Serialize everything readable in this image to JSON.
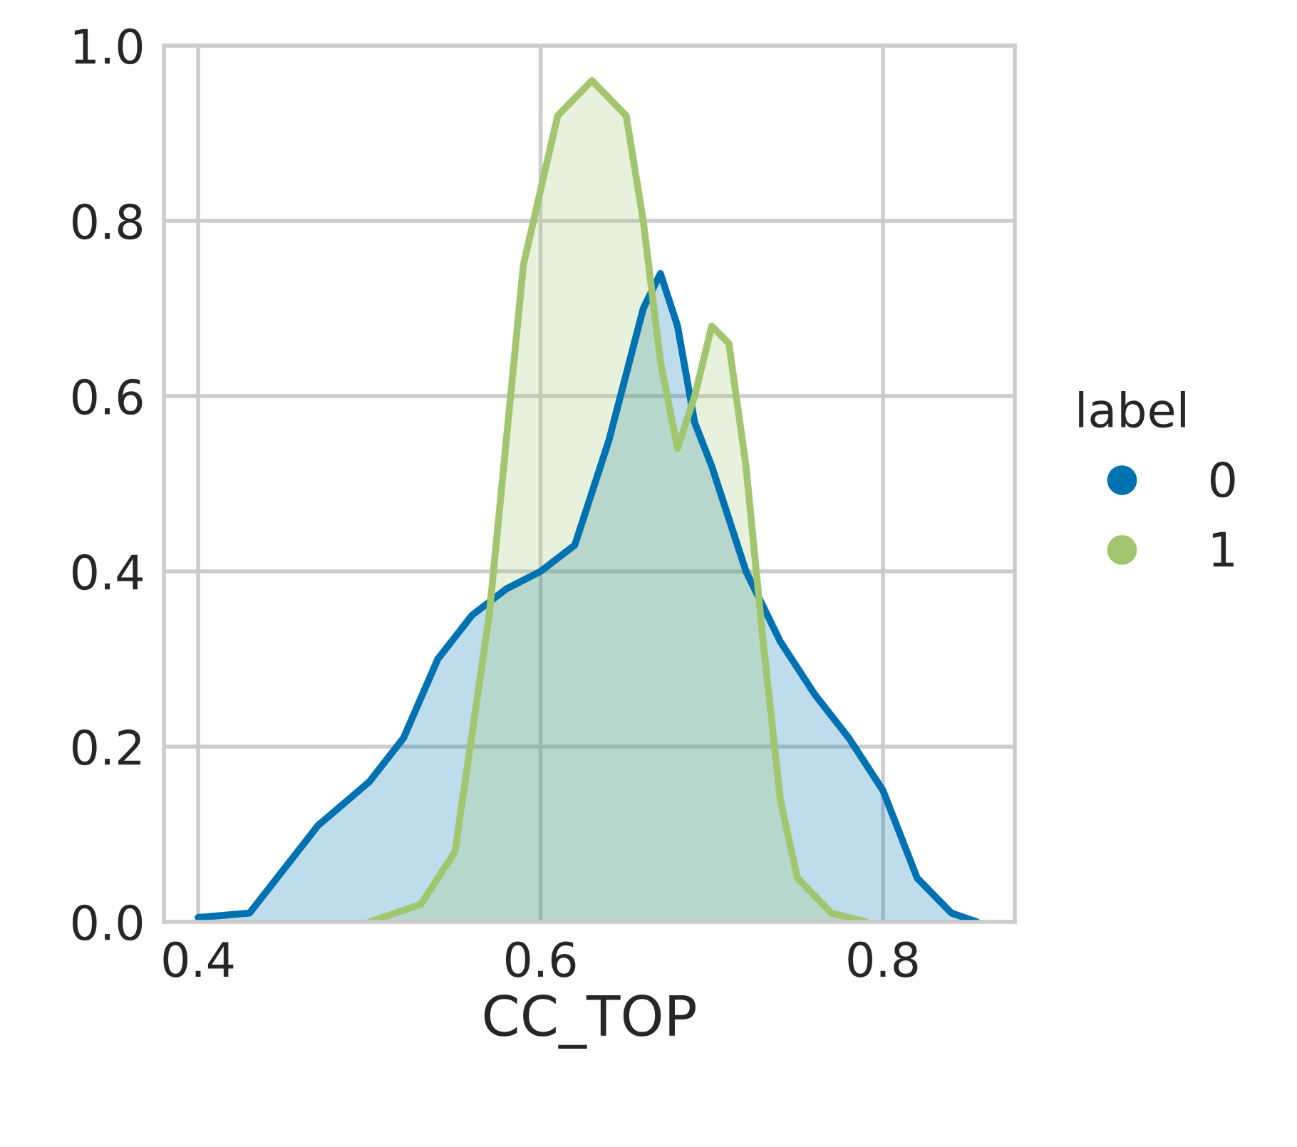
{
  "chart_data": {
    "type": "area",
    "xlabel": "CC_TOP",
    "legend_title": "label",
    "xlim": [
      0.38,
      0.877
    ],
    "ylim": [
      0,
      1.0
    ],
    "xticks": [
      0.4,
      0.6,
      0.8
    ],
    "yticks": [
      {
        "value": 0,
        "label": "0.0"
      },
      0.2,
      0.4,
      0.6,
      0.8,
      {
        "value": 1,
        "label": "1.0"
      }
    ],
    "grid": true,
    "legend": "right",
    "series": [
      {
        "name": "0",
        "color": "#0072b2",
        "x": [
          0.4,
          0.43,
          0.45,
          0.47,
          0.5,
          0.52,
          0.54,
          0.56,
          0.58,
          0.6,
          0.62,
          0.64,
          0.66,
          0.67,
          0.68,
          0.69,
          0.7,
          0.72,
          0.74,
          0.76,
          0.78,
          0.8,
          0.82,
          0.84,
          0.855
        ],
        "values": [
          0.005,
          0.01,
          0.06,
          0.11,
          0.16,
          0.21,
          0.3,
          0.35,
          0.38,
          0.4,
          0.43,
          0.55,
          0.7,
          0.74,
          0.68,
          0.57,
          0.52,
          0.4,
          0.32,
          0.26,
          0.21,
          0.15,
          0.05,
          0.01,
          0.0
        ]
      },
      {
        "name": "1",
        "color": "#a1c66f",
        "x": [
          0.5,
          0.53,
          0.55,
          0.57,
          0.59,
          0.61,
          0.63,
          0.65,
          0.66,
          0.67,
          0.68,
          0.69,
          0.7,
          0.71,
          0.72,
          0.73,
          0.74,
          0.75,
          0.77,
          0.79
        ],
        "values": [
          0.0,
          0.02,
          0.08,
          0.35,
          0.75,
          0.92,
          0.96,
          0.92,
          0.8,
          0.64,
          0.54,
          0.6,
          0.68,
          0.66,
          0.52,
          0.32,
          0.14,
          0.05,
          0.01,
          0.0
        ]
      }
    ]
  }
}
